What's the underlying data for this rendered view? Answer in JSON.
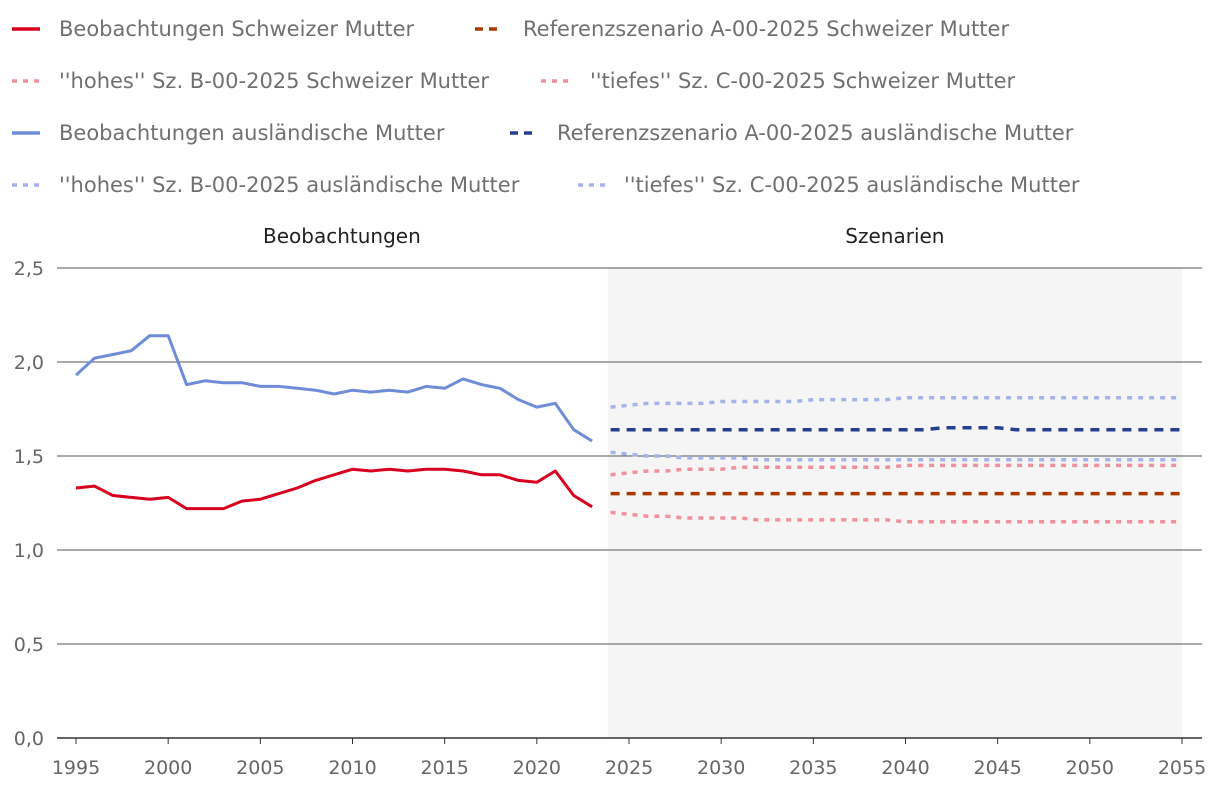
{
  "chart_data": {
    "type": "line",
    "title": "",
    "xlabel": "",
    "ylabel": "",
    "xlim": [
      1995,
      2055
    ],
    "ylim": [
      0,
      2.5
    ],
    "grid": "horizontal",
    "legend_placement": "top",
    "x_ticks": [
      "1995",
      "2000",
      "2005",
      "2010",
      "2015",
      "2020",
      "2025",
      "2030",
      "2035",
      "2040",
      "2045",
      "2050",
      "2055"
    ],
    "y_ticks": [
      "0,0",
      "0,5",
      "1,0",
      "1,5",
      "2,0",
      "2,5"
    ],
    "y_tick_values": [
      0,
      0.5,
      1.0,
      1.5,
      2.0,
      2.5
    ],
    "x_tick_values": [
      1995,
      2000,
      2005,
      2010,
      2015,
      2020,
      2025,
      2030,
      2035,
      2040,
      2045,
      2050,
      2055
    ],
    "sections": [
      {
        "label": "Beobachtungen",
        "from": 1995,
        "to": 2023.85
      },
      {
        "label": "Szenarien",
        "from": 2023.85,
        "to": 2055,
        "shaded": true
      }
    ],
    "series": [
      {
        "name": "Beobachtungen Schweizer Mutter",
        "color": "#d7001e",
        "style": "solid",
        "x_start": 1995,
        "values": [
          1.33,
          1.34,
          1.29,
          1.28,
          1.27,
          1.28,
          1.22,
          1.22,
          1.22,
          1.26,
          1.27,
          1.3,
          1.33,
          1.37,
          1.4,
          1.43,
          1.42,
          1.43,
          1.42,
          1.43,
          1.43,
          1.42,
          1.4,
          1.4,
          1.37,
          1.36,
          1.42,
          1.29,
          1.23
        ]
      },
      {
        "name": "Referenzszenario A-00-2025 Schweizer Mutter",
        "color": "#a83a00",
        "style": "dashed",
        "x_start": 2024,
        "values": [
          1.3,
          1.3,
          1.3,
          1.3,
          1.3,
          1.3,
          1.3,
          1.3,
          1.3,
          1.3,
          1.3,
          1.3,
          1.3,
          1.3,
          1.3,
          1.3,
          1.3,
          1.3,
          1.3,
          1.3,
          1.3,
          1.3,
          1.3,
          1.3,
          1.3,
          1.3,
          1.3,
          1.3,
          1.3,
          1.3,
          1.3,
          1.3
        ]
      },
      {
        "name": "''hohes'' Sz. B-00-2025 Schweizer Mutter",
        "color": "#f0919c",
        "style": "dotted",
        "x_start": 2024,
        "values": [
          1.4,
          1.41,
          1.42,
          1.42,
          1.43,
          1.43,
          1.43,
          1.44,
          1.44,
          1.44,
          1.44,
          1.44,
          1.44,
          1.44,
          1.44,
          1.44,
          1.45,
          1.45,
          1.45,
          1.45,
          1.45,
          1.45,
          1.45,
          1.45,
          1.45,
          1.45,
          1.45,
          1.45,
          1.45,
          1.45,
          1.45,
          1.45
        ]
      },
      {
        "name": "''tiefes'' Sz. C-00-2025 Schweizer Mutter",
        "color": "#f0919c",
        "style": "dotted",
        "x_start": 2024,
        "values": [
          1.2,
          1.19,
          1.18,
          1.18,
          1.17,
          1.17,
          1.17,
          1.17,
          1.16,
          1.16,
          1.16,
          1.16,
          1.16,
          1.16,
          1.16,
          1.16,
          1.15,
          1.15,
          1.15,
          1.15,
          1.15,
          1.15,
          1.15,
          1.15,
          1.15,
          1.15,
          1.15,
          1.15,
          1.15,
          1.15,
          1.15,
          1.15
        ]
      },
      {
        "name": "Beobachtungen ausländische Mutter",
        "color": "#6f8cd8",
        "style": "solid",
        "x_start": 1995,
        "values": [
          1.93,
          2.02,
          2.04,
          2.06,
          2.14,
          2.14,
          1.88,
          1.9,
          1.89,
          1.89,
          1.87,
          1.87,
          1.86,
          1.85,
          1.83,
          1.85,
          1.84,
          1.85,
          1.84,
          1.87,
          1.86,
          1.91,
          1.88,
          1.86,
          1.8,
          1.76,
          1.78,
          1.64,
          1.58
        ]
      },
      {
        "name": "Referenzszenario A-00-2025 ausländische Mutter",
        "color": "#263f8e",
        "style": "dashed",
        "x_start": 2024,
        "values": [
          1.64,
          1.64,
          1.64,
          1.64,
          1.64,
          1.64,
          1.64,
          1.64,
          1.64,
          1.64,
          1.64,
          1.64,
          1.64,
          1.64,
          1.64,
          1.64,
          1.64,
          1.64,
          1.65,
          1.65,
          1.65,
          1.65,
          1.64,
          1.64,
          1.64,
          1.64,
          1.64,
          1.64,
          1.64,
          1.64,
          1.64,
          1.64
        ]
      },
      {
        "name": "''hohes'' Sz. B-00-2025 ausländische Mutter",
        "color": "#a3b4e8",
        "style": "dotted",
        "x_start": 2024,
        "values": [
          1.76,
          1.77,
          1.78,
          1.78,
          1.78,
          1.78,
          1.79,
          1.79,
          1.79,
          1.79,
          1.79,
          1.8,
          1.8,
          1.8,
          1.8,
          1.8,
          1.81,
          1.81,
          1.81,
          1.81,
          1.81,
          1.81,
          1.81,
          1.81,
          1.81,
          1.81,
          1.81,
          1.81,
          1.81,
          1.81,
          1.81,
          1.81
        ]
      },
      {
        "name": "''tiefes'' Sz. C-00-2025 ausländische Mutter",
        "color": "#a3b4e8",
        "style": "dotted",
        "x_start": 2024,
        "values": [
          1.52,
          1.51,
          1.5,
          1.5,
          1.49,
          1.49,
          1.49,
          1.49,
          1.48,
          1.48,
          1.48,
          1.48,
          1.48,
          1.48,
          1.48,
          1.48,
          1.48,
          1.48,
          1.48,
          1.48,
          1.48,
          1.48,
          1.48,
          1.48,
          1.48,
          1.48,
          1.48,
          1.48,
          1.48,
          1.48,
          1.48,
          1.48
        ]
      }
    ]
  }
}
